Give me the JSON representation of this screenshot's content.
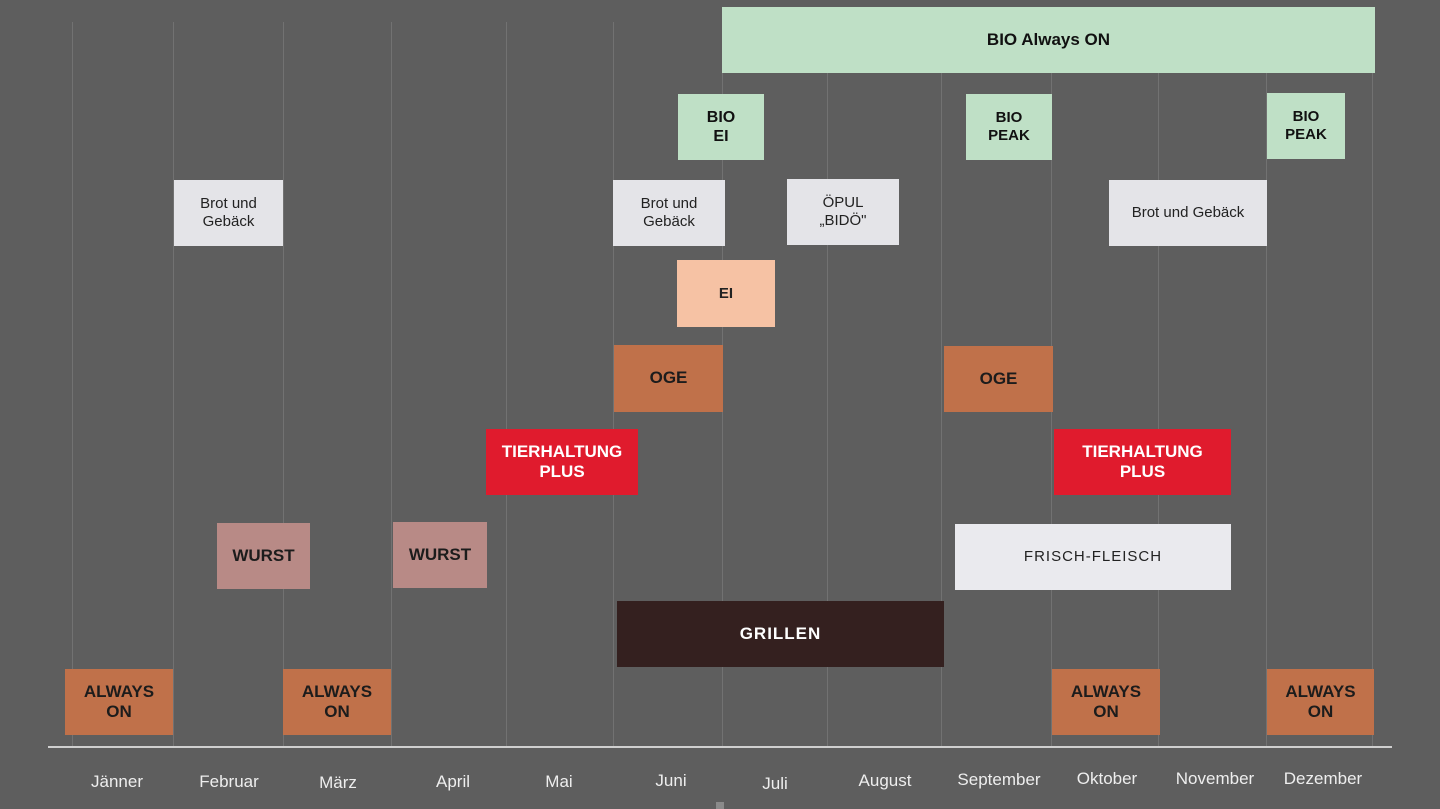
{
  "months": [
    "Jänner",
    "Februar",
    "März",
    "April",
    "Mai",
    "Juni",
    "Juli",
    "August",
    "September",
    "Oktober",
    "November",
    "Dezember"
  ],
  "colors": {
    "background": "#5e5e5e",
    "bio": "#bfe0c6",
    "light": "#e4e4e8",
    "ei": "#f6c2a4",
    "oge": "#c0714a",
    "tierhaltung": "#e01b2d",
    "wurst": "#b88a86",
    "frisch": "#eaeaee",
    "grillen": "#34201f",
    "always_on": "#c0714a"
  },
  "blocks": [
    {
      "id": "bio-always-on",
      "label": "BIO Always ON"
    },
    {
      "id": "bio-ei",
      "label": "BIO\nEI"
    },
    {
      "id": "bio-peak-sep",
      "label": "BIO\nPEAK"
    },
    {
      "id": "bio-peak-dec",
      "label": "BIO\nPEAK"
    },
    {
      "id": "brot-feb",
      "label": "Brot und\nGebäck"
    },
    {
      "id": "brot-jun",
      "label": "Brot und\nGebäck"
    },
    {
      "id": "oepul",
      "label": "ÖPUL\n„BIDÖ\""
    },
    {
      "id": "brot-nov",
      "label": "Brot und Gebäck"
    },
    {
      "id": "ei",
      "label": "EI"
    },
    {
      "id": "oge-jun",
      "label": "OGE"
    },
    {
      "id": "oge-sep",
      "label": "OGE"
    },
    {
      "id": "tierhaltung-may",
      "label": "TIERHALTUNG\nPLUS"
    },
    {
      "id": "tierhaltung-oct",
      "label": "TIERHALTUNG\nPLUS"
    },
    {
      "id": "wurst-feb",
      "label": "WURST"
    },
    {
      "id": "wurst-apr",
      "label": "WURST"
    },
    {
      "id": "frisch-fleisch",
      "label": "FRISCH-FLEISCH"
    },
    {
      "id": "grillen",
      "label": "GRILLEN"
    },
    {
      "id": "always-on-jan",
      "label": "ALWAYS\nON"
    },
    {
      "id": "always-on-mar",
      "label": "ALWAYS\nON"
    },
    {
      "id": "always-on-oct",
      "label": "ALWAYS\nON"
    },
    {
      "id": "always-on-dec",
      "label": "ALWAYS\nON"
    }
  ]
}
